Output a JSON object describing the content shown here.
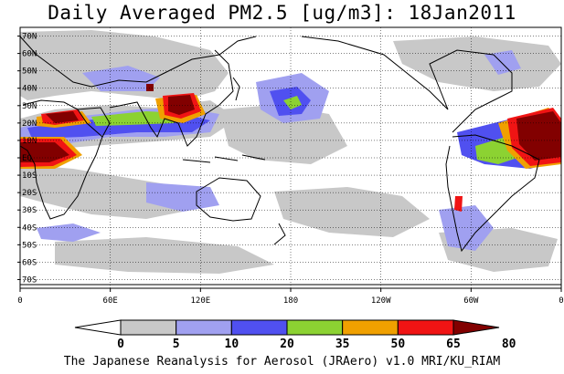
{
  "title": "Daily Averaged PM2.5 [ug/m3]: 18Jan2011",
  "footer": "The Japanese Reanalysis for Aerosol (JRAero) v1.0 MRI/KU_RIAM",
  "map": {
    "lon_labels": [
      "0",
      "60E",
      "120E",
      "180",
      "120W",
      "60W",
      "0"
    ],
    "lat_labels": [
      "70N",
      "60N",
      "50N",
      "40N",
      "30N",
      "20N",
      "10N",
      "EQ",
      "10S",
      "20S",
      "30S",
      "40S",
      "50S",
      "60S",
      "70S"
    ]
  },
  "colorbar": {
    "labels": [
      "0",
      "5",
      "10",
      "20",
      "35",
      "50",
      "65",
      "80"
    ],
    "colors": [
      "#ffffff",
      "#c8c8c8",
      "#a0a0f0",
      "#5050f0",
      "#8cd232",
      "#f0a000",
      "#f01414",
      "#820000"
    ]
  }
}
